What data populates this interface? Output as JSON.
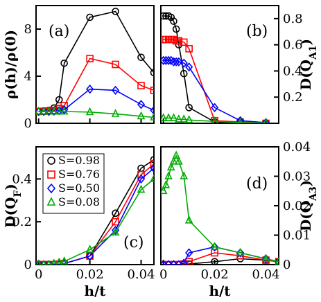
{
  "chart_data": [
    {
      "type": "line",
      "panel_label": "(a)",
      "ylabel": "ρ(h)/ρ(0)",
      "xlim": [
        -0.001,
        0.045
      ],
      "ylim": [
        0,
        10
      ],
      "yticks": [
        "0",
        "4",
        "8"
      ],
      "ytick_values": [
        0,
        4,
        8
      ],
      "xticks": [
        "",
        "",
        ""
      ],
      "xtick_values": [
        0,
        0.02,
        0.04
      ],
      "series": [
        {
          "name": "S=0.98",
          "color": "#000000",
          "marker": "circle",
          "x": [
            0,
            0.002,
            0.004,
            0.006,
            0.008,
            0.01,
            0.02,
            0.03,
            0.04,
            0.045
          ],
          "y": [
            1,
            1.05,
            1.1,
            1.3,
            2.0,
            5.1,
            9.0,
            9.5,
            5.6,
            4.3
          ]
        },
        {
          "name": "S=0.76",
          "color": "#ff0000",
          "marker": "square",
          "x": [
            0,
            0.002,
            0.004,
            0.006,
            0.008,
            0.01,
            0.02,
            0.03,
            0.04,
            0.045
          ],
          "y": [
            1,
            1.02,
            1.05,
            1.1,
            1.25,
            1.5,
            5.5,
            5.0,
            3.2,
            2.8
          ]
        },
        {
          "name": "S=0.50",
          "color": "#0000ff",
          "marker": "diamond",
          "x": [
            0,
            0.002,
            0.004,
            0.006,
            0.008,
            0.01,
            0.02,
            0.03,
            0.04,
            0.045
          ],
          "y": [
            1,
            1.0,
            1.0,
            1.02,
            1.08,
            1.15,
            2.9,
            2.8,
            1.6,
            1.1
          ]
        },
        {
          "name": "S=0.08",
          "color": "#00aa00",
          "marker": "triangle",
          "x": [
            0,
            0.002,
            0.004,
            0.006,
            0.008,
            0.01,
            0.02,
            0.03,
            0.04,
            0.045
          ],
          "y": [
            1,
            1,
            1,
            1,
            1,
            1,
            0.95,
            0.8,
            0.6,
            0.5
          ]
        }
      ]
    },
    {
      "type": "line",
      "panel_label": "(b)",
      "ylabel": "D(Q_A1)",
      "ylabel_main": "D(Q",
      "ylabel_sub": "A1",
      "ylabel_end": ")",
      "y_axis_side": "right",
      "xlim": [
        -0.001,
        0.045
      ],
      "ylim": [
        0,
        0.9
      ],
      "yticks": [
        "0.2",
        "0.4",
        "0.6",
        "0.8"
      ],
      "ytick_values": [
        0.2,
        0.4,
        0.6,
        0.8
      ],
      "xticks": [
        "",
        "",
        ""
      ],
      "xtick_values": [
        0,
        0.02,
        0.04
      ],
      "series": [
        {
          "name": "S=0.98",
          "color": "#000000",
          "marker": "circle",
          "x": [
            0,
            0.001,
            0.002,
            0.003,
            0.004,
            0.005,
            0.006,
            0.008,
            0.01,
            0.02,
            0.03,
            0.04
          ],
          "y": [
            0.82,
            0.82,
            0.82,
            0.81,
            0.78,
            0.72,
            0.6,
            0.38,
            0.12,
            0.01,
            0.005,
            0.0
          ]
        },
        {
          "name": "S=0.76",
          "color": "#ff0000",
          "marker": "square",
          "x": [
            0,
            0.001,
            0.002,
            0.003,
            0.004,
            0.005,
            0.006,
            0.008,
            0.01,
            0.02,
            0.03,
            0.04
          ],
          "y": [
            0.64,
            0.64,
            0.64,
            0.64,
            0.64,
            0.63,
            0.63,
            0.62,
            0.57,
            0.02,
            0.01,
            0.0
          ]
        },
        {
          "name": "S=0.50",
          "color": "#0000ff",
          "marker": "diamond",
          "x": [
            0,
            0.001,
            0.002,
            0.003,
            0.004,
            0.005,
            0.006,
            0.008,
            0.01,
            0.02,
            0.03,
            0.04
          ],
          "y": [
            0.48,
            0.48,
            0.48,
            0.48,
            0.47,
            0.47,
            0.47,
            0.46,
            0.43,
            0.12,
            0.02,
            0.005
          ]
        },
        {
          "name": "S=0.08",
          "color": "#00aa00",
          "marker": "triangle",
          "x": [
            0,
            0.002,
            0.004,
            0.006,
            0.008,
            0.01,
            0.02,
            0.03,
            0.04
          ],
          "y": [
            0.04,
            0.04,
            0.04,
            0.03,
            0.03,
            0.025,
            0.015,
            0.005,
            0.002
          ]
        }
      ]
    },
    {
      "type": "line",
      "panel_label": "(c)",
      "ylabel": "D(Q_F)",
      "ylabel_main": "D(Q",
      "ylabel_sub": "F",
      "ylabel_end": ")",
      "xlabel": "h/t",
      "xlim": [
        -0.001,
        0.045
      ],
      "ylim": [
        0,
        0.55
      ],
      "yticks": [
        "0",
        "0.2",
        "0.4"
      ],
      "ytick_values": [
        0,
        0.2,
        0.4
      ],
      "xticks": [
        "0",
        "0.02",
        "0.04"
      ],
      "xtick_values": [
        0,
        0.02,
        0.04
      ],
      "legend": {
        "placement": "top-left",
        "entries": [
          "S=0.98",
          "S=0.76",
          "S=0.50",
          "S=0.08"
        ]
      },
      "series": [
        {
          "name": "S=0.98",
          "color": "#000000",
          "marker": "circle",
          "x": [
            0,
            0.002,
            0.004,
            0.006,
            0.008,
            0.01,
            0.02,
            0.03,
            0.04,
            0.045
          ],
          "y": [
            0,
            0,
            0,
            0,
            0.002,
            0.005,
            0.04,
            0.24,
            0.45,
            0.49
          ]
        },
        {
          "name": "S=0.76",
          "color": "#ff0000",
          "marker": "square",
          "x": [
            0,
            0.002,
            0.004,
            0.006,
            0.008,
            0.01,
            0.02,
            0.03,
            0.04,
            0.045
          ],
          "y": [
            0,
            0,
            0,
            0,
            0.002,
            0.005,
            0.04,
            0.2,
            0.42,
            0.47
          ]
        },
        {
          "name": "S=0.50",
          "color": "#0000ff",
          "marker": "diamond",
          "x": [
            0,
            0.002,
            0.004,
            0.006,
            0.008,
            0.01,
            0.02,
            0.03,
            0.04,
            0.045
          ],
          "y": [
            0,
            0,
            0,
            0,
            0.002,
            0.005,
            0.04,
            0.16,
            0.4,
            0.45
          ]
        },
        {
          "name": "S=0.08",
          "color": "#00aa00",
          "marker": "triangle",
          "x": [
            0,
            0.002,
            0.004,
            0.006,
            0.008,
            0.01,
            0.02,
            0.03,
            0.04,
            0.045
          ],
          "y": [
            0,
            0,
            0,
            0.005,
            0.01,
            0.015,
            0.07,
            0.15,
            0.35,
            0.4
          ]
        }
      ]
    },
    {
      "type": "line",
      "panel_label": "(d)",
      "ylabel": "D(Q_A3)",
      "ylabel_main": "D(Q",
      "ylabel_sub": "A3",
      "ylabel_end": ")",
      "y_axis_side": "right",
      "xlabel": "h/t",
      "xlim": [
        -0.001,
        0.045
      ],
      "ylim": [
        0,
        0.04
      ],
      "yticks": [
        "0",
        "0.01",
        "0.02",
        "0.03",
        "0.04"
      ],
      "ytick_values": [
        0,
        0.01,
        0.02,
        0.03,
        0.04
      ],
      "xticks": [
        "0",
        "0.02",
        "0.04"
      ],
      "xtick_values": [
        0,
        0.02,
        0.04
      ],
      "series": [
        {
          "name": "S=0.98",
          "color": "#000000",
          "marker": "circle",
          "x": [
            0,
            0.002,
            0.004,
            0.006,
            0.008,
            0.01,
            0.02,
            0.03,
            0.04,
            0.045
          ],
          "y": [
            0,
            0,
            0,
            0,
            0,
            0.0002,
            0.001,
            0.002,
            0.0015,
            0.001
          ]
        },
        {
          "name": "S=0.76",
          "color": "#ff0000",
          "marker": "square",
          "x": [
            0,
            0.002,
            0.004,
            0.006,
            0.008,
            0.01,
            0.02,
            0.03,
            0.04,
            0.045
          ],
          "y": [
            0,
            0,
            0,
            0,
            0.0002,
            0.001,
            0.004,
            0.003,
            0.0015,
            0.001
          ]
        },
        {
          "name": "S=0.50",
          "color": "#0000ff",
          "marker": "diamond",
          "x": [
            0,
            0.002,
            0.004,
            0.006,
            0.008,
            0.01,
            0.02,
            0.03,
            0.04,
            0.045
          ],
          "y": [
            0,
            0,
            0,
            0,
            0.0005,
            0.004,
            0.006,
            0.004,
            0.002,
            0.001
          ]
        },
        {
          "name": "S=0.08",
          "color": "#00aa00",
          "marker": "triangle",
          "x": [
            0,
            0.001,
            0.002,
            0.003,
            0.004,
            0.005,
            0.006,
            0.008,
            0.01,
            0.02,
            0.03,
            0.04,
            0.045
          ],
          "y": [
            0.025,
            0.027,
            0.03,
            0.033,
            0.035,
            0.037,
            0.035,
            0.03,
            0.015,
            0.006,
            0.004,
            0.002,
            0.001
          ]
        }
      ]
    }
  ]
}
